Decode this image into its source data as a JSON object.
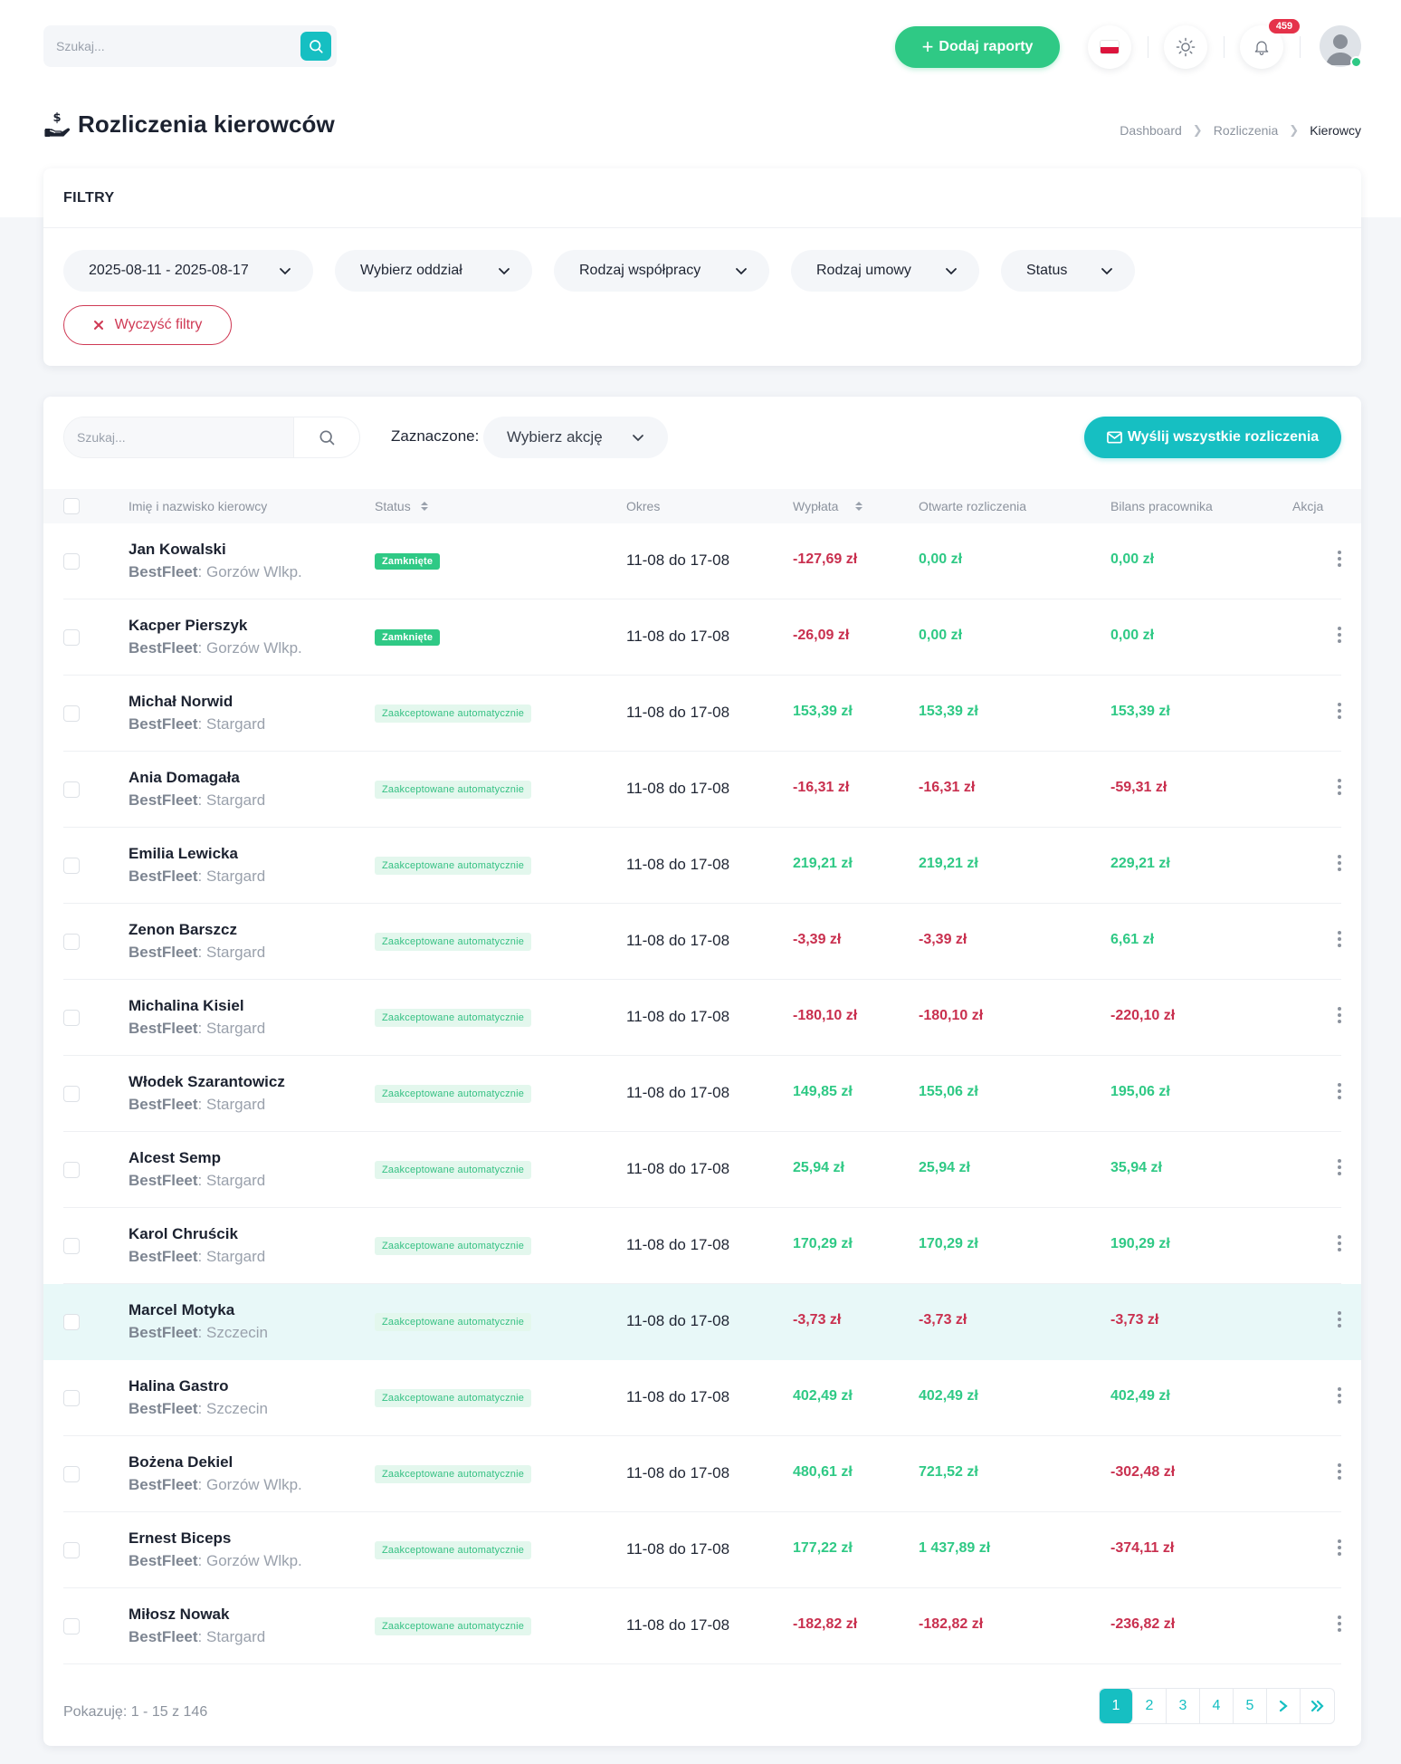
{
  "topbar": {
    "search_placeholder": "Szukaj...",
    "add_reports_label": "Dodaj raporty",
    "notifications_count": "459",
    "language": "pl"
  },
  "page": {
    "title": "Rozliczenia kierowców",
    "breadcrumb": [
      "Dashboard",
      "Rozliczenia",
      "Kierowcy"
    ]
  },
  "filters": {
    "heading": "FILTRY",
    "date_range": "2025-08-11 - 2025-08-17",
    "branch": "Wybierz oddział",
    "cooperation_type": "Rodzaj współpracy",
    "contract_type": "Rodzaj umowy",
    "status": "Status",
    "clear_label": "Wyczyść filtry"
  },
  "table_toolbar": {
    "search_placeholder": "Szukaj...",
    "selected_label": "Zaznaczone:",
    "action_placeholder": "Wybierz akcję",
    "send_all_label": "Wyślij wszystkie rozliczenia"
  },
  "table": {
    "columns": [
      "Imię i nazwisko kierowcy",
      "Status",
      "Okres",
      "Wypłata",
      "Otwarte rozliczenia",
      "Bilans pracownika",
      "Akcja"
    ],
    "rows": [
      {
        "name": "Jan Kowalski",
        "company": "BestFleet",
        "city": "Gorzów Wlkp.",
        "status": "Zamknięte",
        "status_type": "closed",
        "period": "11-08 do 17-08",
        "payout": "-127,69 zł",
        "open": "0,00 zł",
        "balance": "0,00 zł"
      },
      {
        "name": "Kacper Pierszyk",
        "company": "BestFleet",
        "city": "Gorzów Wlkp.",
        "status": "Zamknięte",
        "status_type": "closed",
        "period": "11-08 do 17-08",
        "payout": "-26,09 zł",
        "open": "0,00 zł",
        "balance": "0,00 zł"
      },
      {
        "name": "Michał Norwid",
        "company": "BestFleet",
        "city": "Stargard",
        "status": "Zaakceptowane automatycznie",
        "status_type": "auto",
        "period": "11-08 do 17-08",
        "payout": "153,39 zł",
        "open": "153,39 zł",
        "balance": "153,39 zł"
      },
      {
        "name": "Ania Domagała",
        "company": "BestFleet",
        "city": "Stargard",
        "status": "Zaakceptowane automatycznie",
        "status_type": "auto",
        "period": "11-08 do 17-08",
        "payout": "-16,31 zł",
        "open": "-16,31 zł",
        "balance": "-59,31 zł"
      },
      {
        "name": "Emilia Lewicka",
        "company": "BestFleet",
        "city": "Stargard",
        "status": "Zaakceptowane automatycznie",
        "status_type": "auto",
        "period": "11-08 do 17-08",
        "payout": "219,21 zł",
        "open": "219,21 zł",
        "balance": "229,21 zł"
      },
      {
        "name": "Zenon Barszcz",
        "company": "BestFleet",
        "city": "Stargard",
        "status": "Zaakceptowane automatycznie",
        "status_type": "auto",
        "period": "11-08 do 17-08",
        "payout": "-3,39 zł",
        "open": "-3,39 zł",
        "balance": "6,61 zł"
      },
      {
        "name": "Michalina Kisiel",
        "company": "BestFleet",
        "city": "Stargard",
        "status": "Zaakceptowane automatycznie",
        "status_type": "auto",
        "period": "11-08 do 17-08",
        "payout": "-180,10 zł",
        "open": "-180,10 zł",
        "balance": "-220,10 zł"
      },
      {
        "name": "Włodek Szarantowicz",
        "company": "BestFleet",
        "city": "Stargard",
        "status": "Zaakceptowane automatycznie",
        "status_type": "auto",
        "period": "11-08 do 17-08",
        "payout": "149,85 zł",
        "open": "155,06 zł",
        "balance": "195,06 zł"
      },
      {
        "name": "Alcest Semp",
        "company": "BestFleet",
        "city": "Stargard",
        "status": "Zaakceptowane automatycznie",
        "status_type": "auto",
        "period": "11-08 do 17-08",
        "payout": "25,94 zł",
        "open": "25,94 zł",
        "balance": "35,94 zł"
      },
      {
        "name": "Karol Chruścik",
        "company": "BestFleet",
        "city": "Stargard",
        "status": "Zaakceptowane automatycznie",
        "status_type": "auto",
        "period": "11-08 do 17-08",
        "payout": "170,29 zł",
        "open": "170,29 zł",
        "balance": "190,29 zł"
      },
      {
        "name": "Marcel Motyka",
        "company": "BestFleet",
        "city": "Szczecin",
        "status": "Zaakceptowane automatycznie",
        "status_type": "auto",
        "period": "11-08 do 17-08",
        "payout": "-3,73 zł",
        "open": "-3,73 zł",
        "balance": "-3,73 zł",
        "highlight": true
      },
      {
        "name": "Halina Gastro",
        "company": "BestFleet",
        "city": "Szczecin",
        "status": "Zaakceptowane automatycznie",
        "status_type": "auto",
        "period": "11-08 do 17-08",
        "payout": "402,49 zł",
        "open": "402,49 zł",
        "balance": "402,49 zł"
      },
      {
        "name": "Bożena Dekiel",
        "company": "BestFleet",
        "city": "Gorzów Wlkp.",
        "status": "Zaakceptowane automatycznie",
        "status_type": "auto",
        "period": "11-08 do 17-08",
        "payout": "480,61 zł",
        "open": "721,52 zł",
        "balance": "-302,48 zł"
      },
      {
        "name": "Ernest Biceps",
        "company": "BestFleet",
        "city": "Gorzów Wlkp.",
        "status": "Zaakceptowane automatycznie",
        "status_type": "auto",
        "period": "11-08 do 17-08",
        "payout": "177,22 zł",
        "open": "1 437,89 zł",
        "balance": "-374,11 zł"
      },
      {
        "name": "Miłosz Nowak",
        "company": "BestFleet",
        "city": "Stargard",
        "status": "Zaakceptowane automatycznie",
        "status_type": "auto",
        "period": "11-08 do 17-08",
        "payout": "-182,82 zł",
        "open": "-182,82 zł",
        "balance": "-236,82 zł"
      }
    ]
  },
  "footer": {
    "showing": "Pokazuję: 1 - 15 z 146",
    "pages": [
      "1",
      "2",
      "3",
      "4",
      "5"
    ],
    "current_page": "1"
  },
  "colors": {
    "primary": "#16bfc2",
    "success": "#2fc985",
    "danger": "#c9304f",
    "badge": "#e5324a"
  },
  "icons": {
    "search": "search-icon",
    "sun": "sun-icon",
    "bell": "bell-icon",
    "kebab": "kebab-icon",
    "chevron": "chevron-down-icon",
    "mail": "mail-icon",
    "payout": "hand-coin-icon"
  }
}
